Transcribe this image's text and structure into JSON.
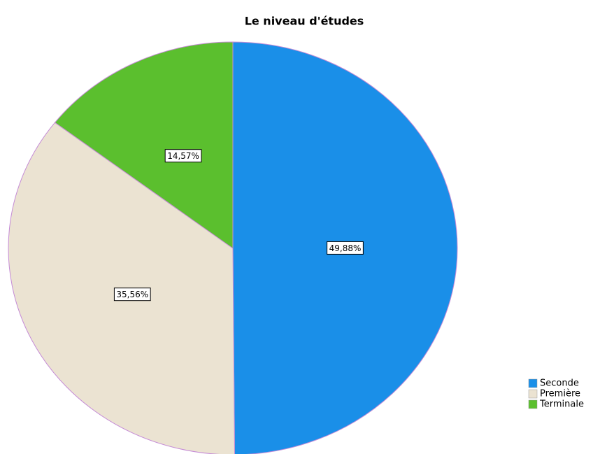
{
  "chart_data": {
    "type": "pie",
    "title": "Le niveau d'études",
    "categories": [
      "Seconde",
      "Première",
      "Terminale"
    ],
    "values": [
      49.88,
      35.56,
      14.57
    ],
    "value_labels": [
      "49,88%",
      "35,56%",
      "14,57%"
    ],
    "colors": [
      "#1a8fe8",
      "#ebe3d2",
      "#5bbf2e"
    ],
    "legend": "bottom-right"
  }
}
